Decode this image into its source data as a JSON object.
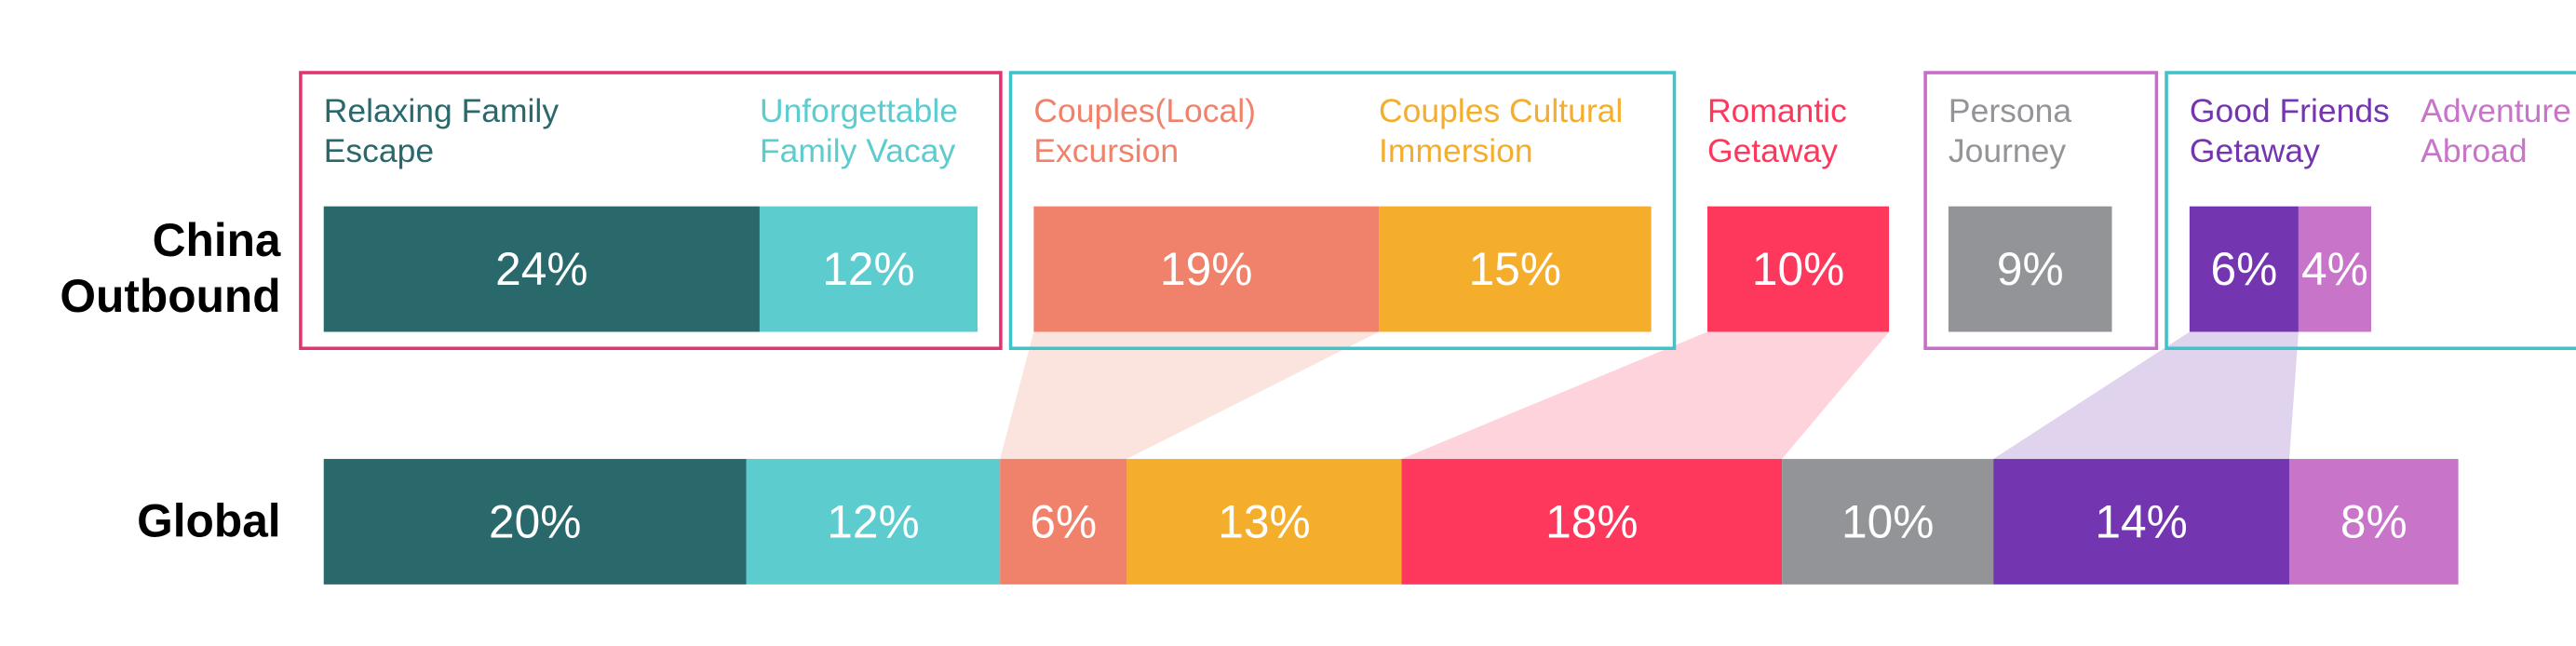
{
  "chart_data": {
    "type": "segmented-bar-comparison",
    "categories": [
      "China Outbound",
      "Global"
    ],
    "series": [
      {
        "name": "Relaxing Family Escape",
        "color": "#29686b",
        "values": [
          24,
          20
        ],
        "value_labels": [
          "24%",
          "20%"
        ]
      },
      {
        "name": "Unforgettable Family Vacay",
        "color": "#5ccccf",
        "values": [
          12,
          12
        ],
        "value_labels": [
          "12%",
          "12%"
        ]
      },
      {
        "name": "Couples(Local) Excursion",
        "color": "#f0826b",
        "values": [
          19,
          6
        ],
        "value_labels": [
          "19%",
          "6%"
        ],
        "highlight": true
      },
      {
        "name": "Couples Cultural Immersion",
        "color": "#f4ae2c",
        "values": [
          15,
          13
        ],
        "value_labels": [
          "15%",
          "13%"
        ]
      },
      {
        "name": "Romantic Getaway",
        "color": "#fe385c",
        "values": [
          10,
          18
        ],
        "value_labels": [
          "10%",
          "18%"
        ],
        "highlight": true
      },
      {
        "name": "Persona Journey",
        "color": "#929497",
        "values": [
          9,
          10
        ],
        "value_labels": [
          "9%",
          "10%"
        ]
      },
      {
        "name": "Good Friends Getaway",
        "color": "#7435b1",
        "values": [
          6,
          14
        ],
        "value_labels": [
          "6%",
          "14%"
        ],
        "highlight": true
      },
      {
        "name": "Adventure Abroad",
        "color": "#c774c9",
        "values": [
          4,
          8
        ],
        "value_labels": [
          "4%",
          "8%"
        ]
      }
    ],
    "groups": [
      {
        "size": 2,
        "color": "#e5336f"
      },
      {
        "size": 2,
        "color": "#3ec3cb"
      },
      {
        "size": 1,
        "color": null
      },
      {
        "size": 1,
        "color": "#c96bca"
      },
      {
        "size": 2,
        "color": "#3ec3cb"
      }
    ]
  }
}
